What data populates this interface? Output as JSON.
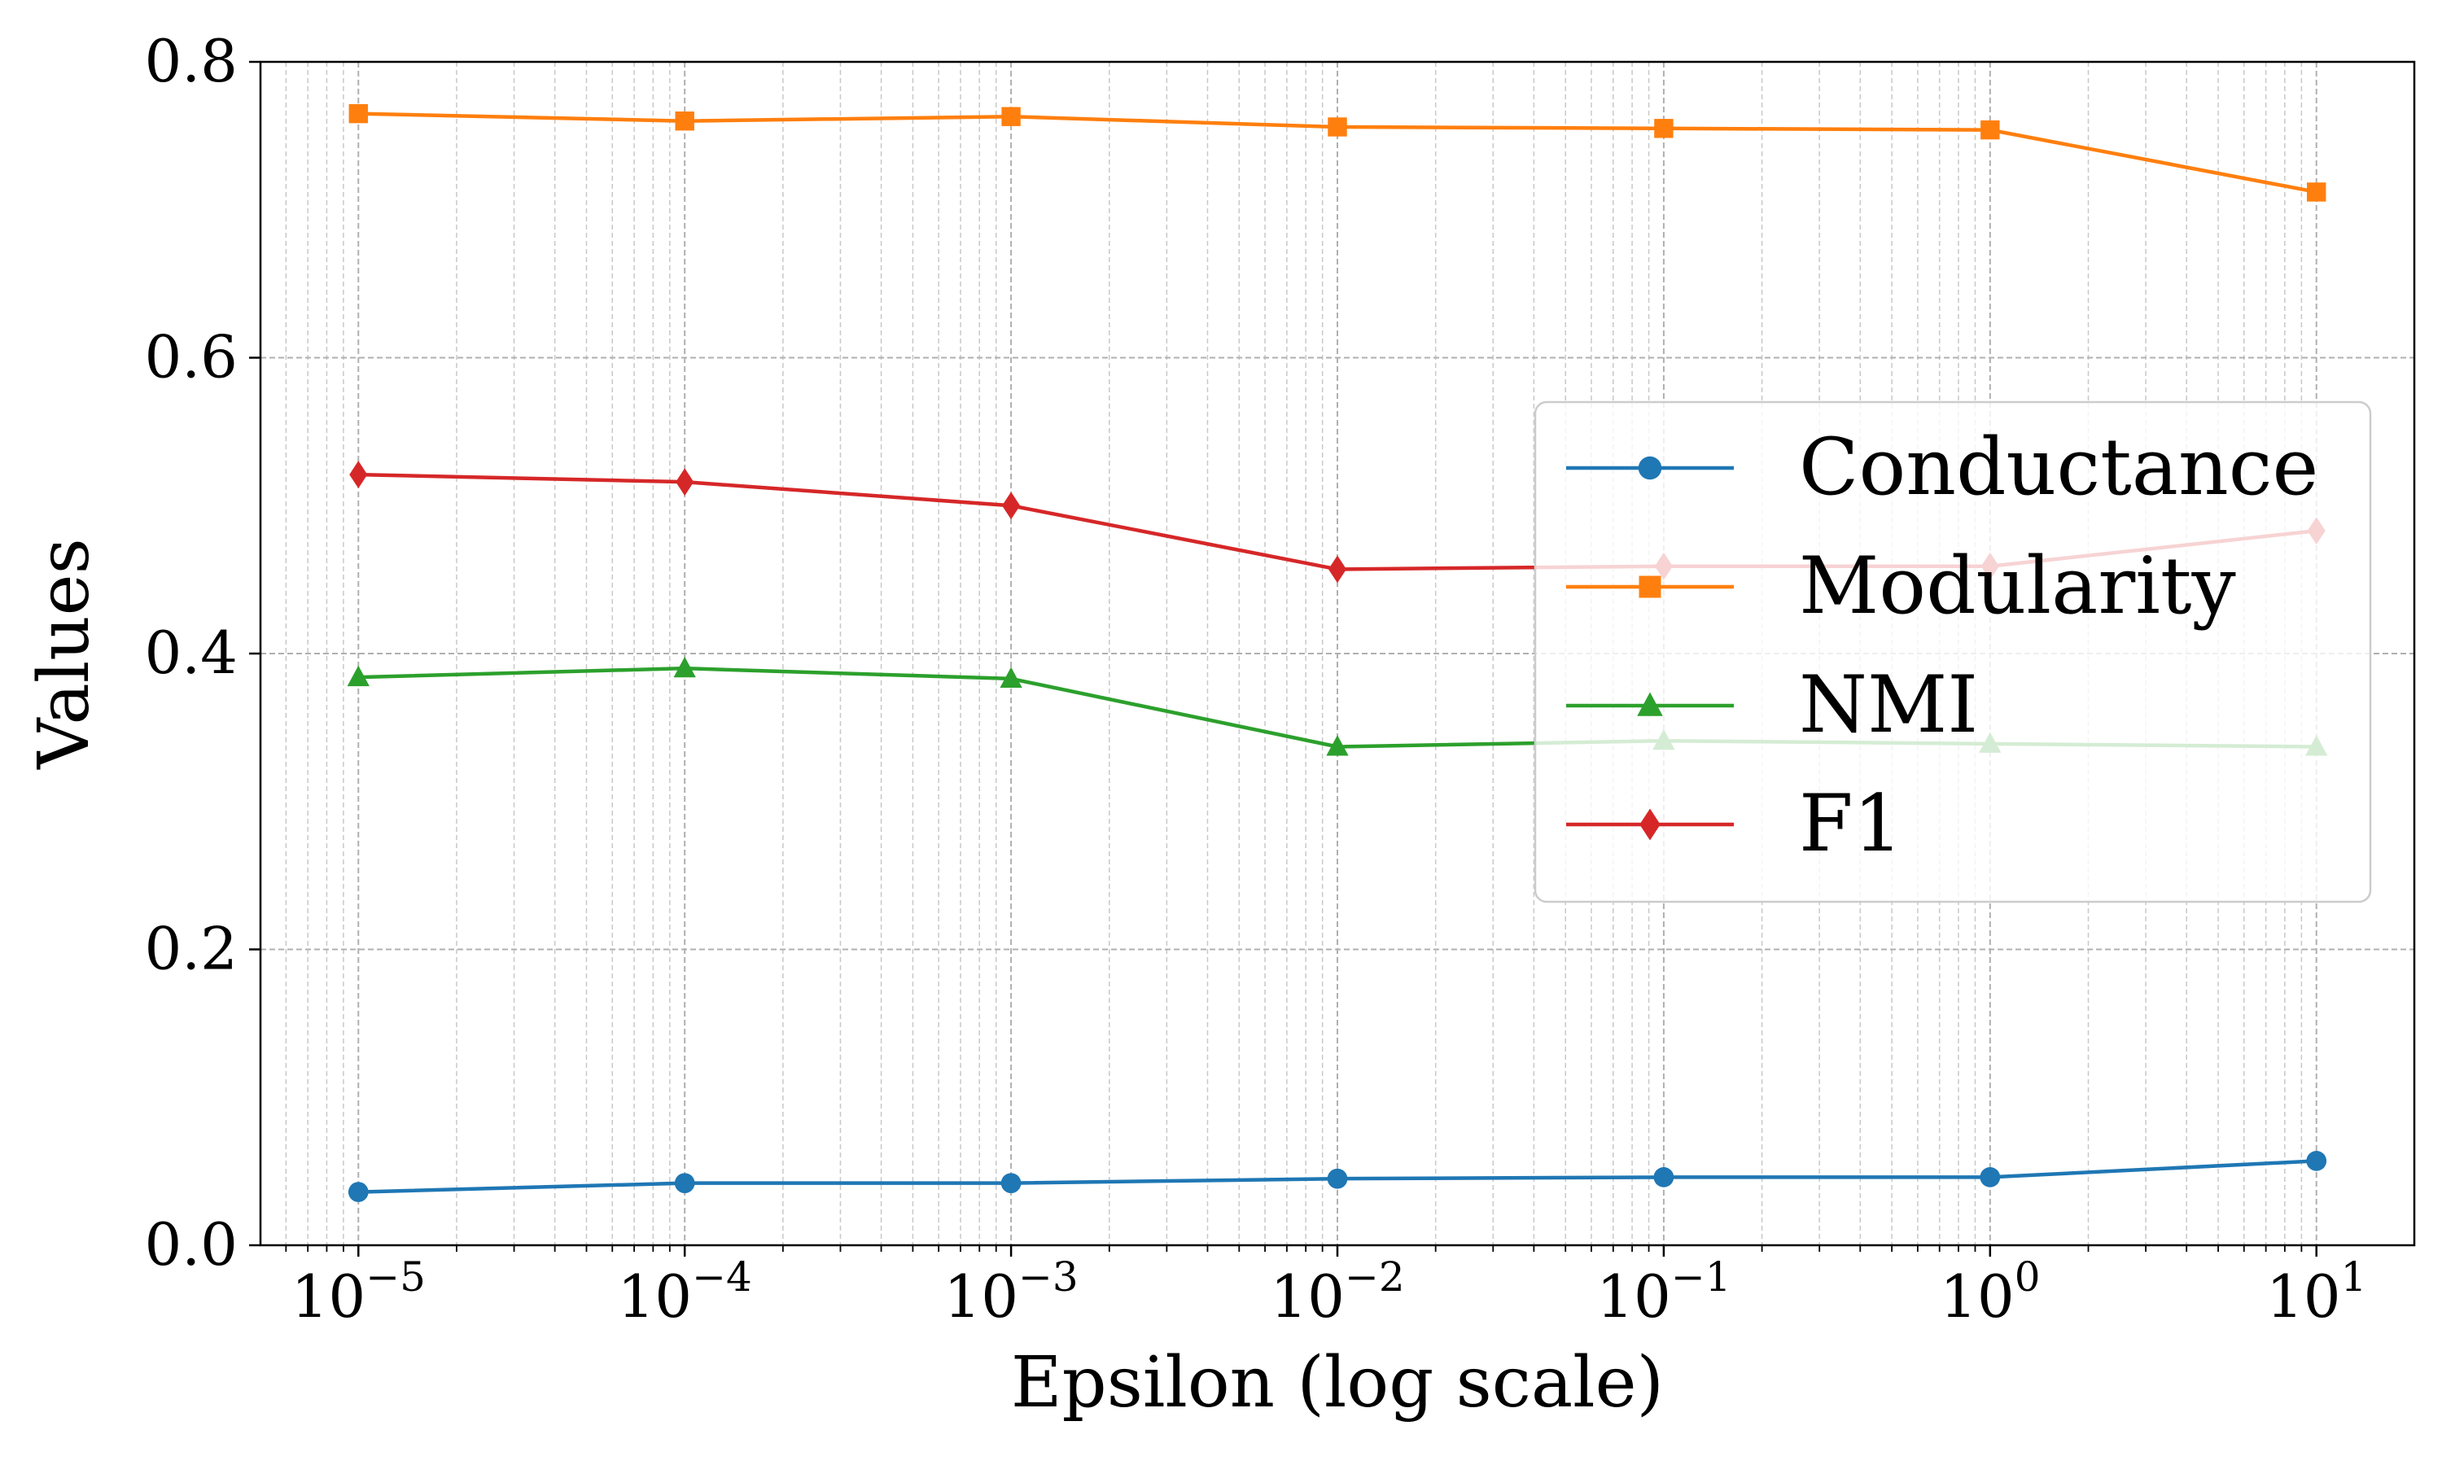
{
  "chart_data": {
    "type": "line",
    "title": "",
    "xlabel": "Epsilon (log scale)",
    "ylabel": "Values",
    "xscale": "log",
    "x": [
      1e-05,
      0.0001,
      0.001,
      0.01,
      0.1,
      1,
      10
    ],
    "x_tick_labels": [
      {
        "base": "10",
        "exp": "−5"
      },
      {
        "base": "10",
        "exp": "−4"
      },
      {
        "base": "10",
        "exp": "−3"
      },
      {
        "base": "10",
        "exp": "−2"
      },
      {
        "base": "10",
        "exp": "−1"
      },
      {
        "base": "10",
        "exp": "0"
      },
      {
        "base": "10",
        "exp": "1"
      }
    ],
    "xlim_exp": [
      -5.3,
      1.3
    ],
    "ylim": [
      0,
      0.8
    ],
    "y_ticks": [
      "0.0",
      "0.2",
      "0.4",
      "0.6",
      "0.8"
    ],
    "grid": true,
    "legend_position": "center-right",
    "series": [
      {
        "name": "Conductance",
        "color": "#1f77b4",
        "marker": "circle",
        "values": [
          0.036,
          0.042,
          0.042,
          0.045,
          0.046,
          0.046,
          0.057
        ]
      },
      {
        "name": "Modularity",
        "color": "#ff7f0e",
        "marker": "square",
        "values": [
          0.765,
          0.76,
          0.763,
          0.756,
          0.755,
          0.754,
          0.712
        ]
      },
      {
        "name": "NMI",
        "color": "#2ca02c",
        "marker": "triangle",
        "values": [
          0.384,
          0.39,
          0.383,
          0.337,
          0.341,
          0.339,
          0.337
        ]
      },
      {
        "name": "F1",
        "color": "#d62728",
        "marker": "diamond",
        "values": [
          0.521,
          0.516,
          0.5,
          0.457,
          0.459,
          0.459,
          0.483
        ]
      }
    ]
  }
}
